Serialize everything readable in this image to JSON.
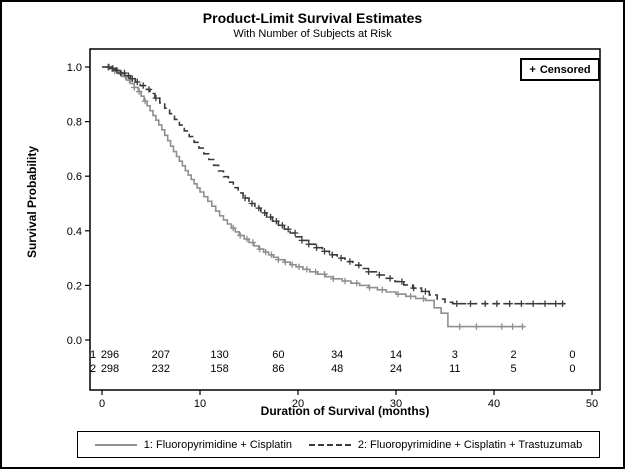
{
  "censored": {
    "marker": "+",
    "label": "Censored"
  },
  "chart_data": {
    "type": "line",
    "subtype": "kaplan-meier-step",
    "title": "Product-Limit Survival Estimates",
    "subtitle": "With Number of Subjects at Risk",
    "xlabel": "Duration of Survival (months)",
    "ylabel": "Survival Probability",
    "xlim": [
      0,
      50
    ],
    "ylim": [
      0,
      1
    ],
    "xticks": [
      0,
      10,
      20,
      30,
      40,
      50
    ],
    "yticks": [
      "0.0",
      "0.2",
      "0.4",
      "0.6",
      "0.8",
      "1.0"
    ],
    "grid": false,
    "legend_position": "bottom",
    "series": [
      {
        "name": "1: Fluoropyrimidine + Cisplatin",
        "line_style": "solid",
        "color": "#8f8f8f",
        "steps": [
          [
            0,
            1.0
          ],
          [
            0.7,
            0.995
          ],
          [
            1.2,
            0.985
          ],
          [
            1.7,
            0.975
          ],
          [
            2.1,
            0.965
          ],
          [
            2.5,
            0.952
          ],
          [
            2.9,
            0.94
          ],
          [
            3.3,
            0.925
          ],
          [
            3.7,
            0.91
          ],
          [
            4.0,
            0.893
          ],
          [
            4.3,
            0.875
          ],
          [
            4.6,
            0.858
          ],
          [
            4.9,
            0.84
          ],
          [
            5.2,
            0.822
          ],
          [
            5.5,
            0.805
          ],
          [
            5.8,
            0.788
          ],
          [
            6.1,
            0.77
          ],
          [
            6.4,
            0.75
          ],
          [
            6.7,
            0.73
          ],
          [
            7.0,
            0.71
          ],
          [
            7.3,
            0.69
          ],
          [
            7.6,
            0.672
          ],
          [
            7.9,
            0.655
          ],
          [
            8.2,
            0.638
          ],
          [
            8.5,
            0.62
          ],
          [
            8.8,
            0.604
          ],
          [
            9.1,
            0.588
          ],
          [
            9.4,
            0.572
          ],
          [
            9.7,
            0.557
          ],
          [
            10.0,
            0.542
          ],
          [
            10.4,
            0.525
          ],
          [
            10.8,
            0.508
          ],
          [
            11.2,
            0.49
          ],
          [
            11.6,
            0.472
          ],
          [
            12.0,
            0.455
          ],
          [
            12.4,
            0.44
          ],
          [
            12.8,
            0.425
          ],
          [
            13.2,
            0.41
          ],
          [
            13.6,
            0.396
          ],
          [
            14.0,
            0.383
          ],
          [
            14.5,
            0.37
          ],
          [
            15.0,
            0.357
          ],
          [
            15.5,
            0.345
          ],
          [
            16.0,
            0.333
          ],
          [
            16.5,
            0.322
          ],
          [
            17.0,
            0.312
          ],
          [
            17.5,
            0.303
          ],
          [
            18.0,
            0.294
          ],
          [
            18.6,
            0.285
          ],
          [
            19.2,
            0.276
          ],
          [
            19.8,
            0.268
          ],
          [
            20.5,
            0.259
          ],
          [
            21.2,
            0.25
          ],
          [
            22.0,
            0.241
          ],
          [
            22.8,
            0.232
          ],
          [
            23.6,
            0.224
          ],
          [
            24.5,
            0.216
          ],
          [
            25.4,
            0.208
          ],
          [
            26.3,
            0.2
          ],
          [
            27.2,
            0.192
          ],
          [
            28.1,
            0.184
          ],
          [
            29.0,
            0.176
          ],
          [
            30.0,
            0.168
          ],
          [
            31.0,
            0.16
          ],
          [
            32.0,
            0.152
          ],
          [
            33.0,
            0.145
          ],
          [
            33.9,
            0.118
          ],
          [
            34.6,
            0.098
          ],
          [
            35.3,
            0.049
          ],
          [
            43.2,
            0.049
          ]
        ],
        "censor_times": [
          0.6,
          1.0,
          1.3,
          1.6,
          2.0,
          2.4,
          2.8,
          3.3,
          3.8,
          4.4,
          13.4,
          14.1,
          14.8,
          15.4,
          16.1,
          16.7,
          17.3,
          18.0,
          18.7,
          19.4,
          20.1,
          20.9,
          21.8,
          22.7,
          23.6,
          24.8,
          26.0,
          27.3,
          28.6,
          30.2,
          31.5,
          32.8,
          36.5,
          38.2,
          40.8,
          41.9,
          42.9
        ]
      },
      {
        "name": "2: Fluoropyrimidine + Cisplatin + Trastuzumab",
        "line_style": "dashed",
        "color": "#3a3a3a",
        "steps": [
          [
            0,
            1.0
          ],
          [
            0.8,
            0.995
          ],
          [
            1.4,
            0.988
          ],
          [
            1.9,
            0.978
          ],
          [
            2.4,
            0.968
          ],
          [
            2.9,
            0.957
          ],
          [
            3.4,
            0.945
          ],
          [
            3.9,
            0.932
          ],
          [
            4.4,
            0.918
          ],
          [
            4.9,
            0.903
          ],
          [
            5.4,
            0.886
          ],
          [
            5.9,
            0.868
          ],
          [
            6.4,
            0.849
          ],
          [
            6.9,
            0.829
          ],
          [
            7.4,
            0.808
          ],
          [
            7.9,
            0.787
          ],
          [
            8.4,
            0.766
          ],
          [
            8.9,
            0.745
          ],
          [
            9.4,
            0.724
          ],
          [
            9.9,
            0.703
          ],
          [
            10.4,
            0.682
          ],
          [
            10.9,
            0.661
          ],
          [
            11.4,
            0.64
          ],
          [
            11.9,
            0.619
          ],
          [
            12.4,
            0.598
          ],
          [
            12.9,
            0.578
          ],
          [
            13.4,
            0.558
          ],
          [
            13.9,
            0.539
          ],
          [
            14.4,
            0.52
          ],
          [
            15.0,
            0.5
          ],
          [
            15.6,
            0.483
          ],
          [
            16.2,
            0.466
          ],
          [
            16.8,
            0.45
          ],
          [
            17.4,
            0.435
          ],
          [
            18.0,
            0.42
          ],
          [
            18.6,
            0.406
          ],
          [
            19.2,
            0.392
          ],
          [
            19.8,
            0.378
          ],
          [
            20.4,
            0.365
          ],
          [
            21.1,
            0.351
          ],
          [
            21.8,
            0.338
          ],
          [
            22.5,
            0.325
          ],
          [
            23.2,
            0.312
          ],
          [
            24.0,
            0.3
          ],
          [
            24.8,
            0.287
          ],
          [
            25.6,
            0.274
          ],
          [
            26.4,
            0.262
          ],
          [
            27.2,
            0.25
          ],
          [
            28.1,
            0.238
          ],
          [
            29.0,
            0.226
          ],
          [
            29.9,
            0.214
          ],
          [
            30.8,
            0.202
          ],
          [
            31.7,
            0.19
          ],
          [
            32.6,
            0.178
          ],
          [
            33.4,
            0.165
          ],
          [
            34.2,
            0.15
          ],
          [
            35.0,
            0.138
          ],
          [
            35.8,
            0.133
          ],
          [
            47.2,
            0.133
          ]
        ],
        "censor_times": [
          0.7,
          1.1,
          1.5,
          1.9,
          2.3,
          2.7,
          3.1,
          3.6,
          4.2,
          4.8,
          5.5,
          14.6,
          15.3,
          16.0,
          16.6,
          17.2,
          17.8,
          18.4,
          19.0,
          19.7,
          20.4,
          21.1,
          21.9,
          22.7,
          23.5,
          24.4,
          25.3,
          26.2,
          27.2,
          28.3,
          29.4,
          30.6,
          31.8,
          33.0,
          36.2,
          37.6,
          39.1,
          40.3,
          41.6,
          42.8,
          44.0,
          45.2,
          46.3,
          47.0
        ]
      }
    ],
    "at_risk_table": {
      "times": [
        0,
        6,
        12,
        18,
        24,
        30,
        36,
        42,
        48
      ],
      "rows": [
        {
          "label": "1",
          "counts": [
            296,
            207,
            130,
            60,
            34,
            14,
            3,
            2,
            0
          ]
        },
        {
          "label": "2",
          "counts": [
            298,
            232,
            158,
            86,
            48,
            24,
            11,
            5,
            0
          ]
        }
      ]
    }
  }
}
